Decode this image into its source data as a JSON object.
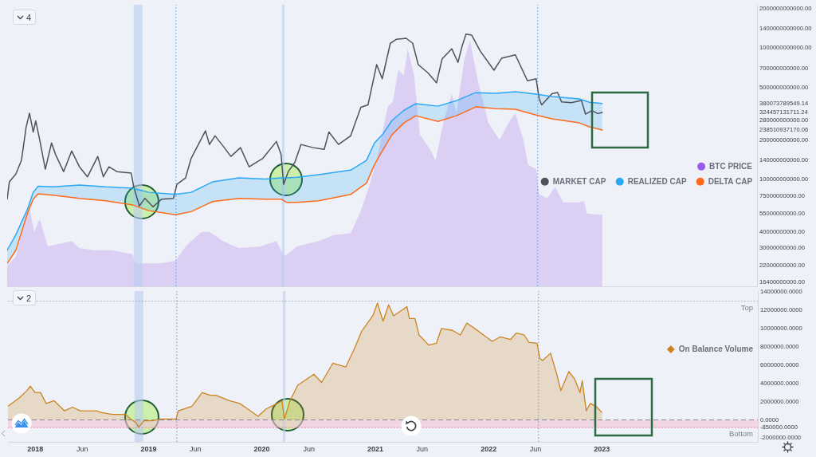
{
  "chart_data": [
    {
      "type": "line",
      "log": true,
      "xlim": [
        "2017-10-06",
        "2024-05-19"
      ],
      "ylim": [
        15400000000,
        2140000000000
      ],
      "yticks": [
        {
          "value": 16400000000,
          "label": "16400000000.00"
        },
        {
          "value": 22000000000,
          "label": "22000000000.00"
        },
        {
          "value": 30000000000,
          "label": "30000000000.00"
        },
        {
          "value": 40000000000,
          "label": "40000000000.00"
        },
        {
          "value": 55000000000,
          "label": "55000000000.00"
        },
        {
          "value": 75000000000,
          "label": "75000000000.00"
        },
        {
          "value": 100000000000,
          "label": "100000000000.00"
        },
        {
          "value": 140000000000,
          "label": "140000000000.00"
        },
        {
          "value": 200000000000,
          "label": "200000000000.00"
        },
        {
          "value": 238510937170.06,
          "label": "238510937170.06"
        },
        {
          "value": 280000000000,
          "label": "280000000000.00"
        },
        {
          "value": 324457131711.24,
          "label": "324457131711.24"
        },
        {
          "value": 380073789549.14,
          "label": "380073789549.14"
        },
        {
          "value": 500000000000,
          "label": "500000000000.00"
        },
        {
          "value": 700000000000,
          "label": "700000000000.00"
        },
        {
          "value": 1000000000000,
          "label": "1000000000000.00"
        },
        {
          "value": 1400000000000,
          "label": "1400000000000.00"
        },
        {
          "value": 2000000000000,
          "label": "2000000000000.00"
        }
      ],
      "tick_labels": "y",
      "legend": "right",
      "line_style": "solid",
      "annotations": [
        "4"
      ],
      "ref_lines": [
        {
          "axis": "x",
          "value": "2019-04-03",
          "color": "#5b9be0",
          "line_style": "dotted"
        },
        {
          "axis": "x",
          "value": "2022-06-12",
          "color": "#5b9be0",
          "line_style": "dotted"
        }
      ],
      "bands": [
        {
          "axis": "x",
          "from": "2018-11-18",
          "to": "2018-12-16",
          "color": "#b7cdf0"
        },
        {
          "axis": "x",
          "from": "2020-03-10",
          "to": "2020-03-18",
          "color": "#b7cdf0"
        }
      ],
      "series": [
        {
          "name": "BTC PRICE",
          "type": "area",
          "color": "#9a5ce8",
          "x": [
            "2017-10-06",
            "2017-11-03",
            "2017-12-06",
            "2017-12-17",
            "2018-01-01",
            "2018-01-19",
            "2018-02-14",
            "2018-04-06",
            "2018-05-02",
            "2018-05-27",
            "2018-07-18",
            "2018-09-07",
            "2018-11-15",
            "2018-11-23",
            "2019-02-08",
            "2019-04-01",
            "2019-05-04",
            "2019-06-24",
            "2019-07-20",
            "2019-09-02",
            "2019-10-23",
            "2019-12-31",
            "2020-02-21",
            "2020-03-17",
            "2020-04-27",
            "2020-07-06",
            "2020-08-26",
            "2020-10-17",
            "2020-11-19",
            "2020-12-15",
            "2021-01-09",
            "2021-02-14",
            "2021-03-02",
            "2021-03-20",
            "2021-04-07",
            "2021-04-19",
            "2021-05-10",
            "2021-05-28",
            "2021-06-30",
            "2021-07-18",
            "2021-08-13",
            "2021-09-08",
            "2021-09-23",
            "2021-10-19",
            "2021-11-06",
            "2021-12-01",
            "2022-01-04",
            "2022-02-09",
            "2022-03-14",
            "2022-04-01",
            "2022-04-27",
            "2022-05-12",
            "2022-06-07",
            "2022-06-17",
            "2022-07-13",
            "2022-08-07",
            "2022-09-02",
            "2022-10-24",
            "2022-11-08",
            "2022-11-18",
            "2023-01-06"
          ],
          "values": [
            22000000000,
            26000000000,
            55000000000,
            60000000000,
            40000000000,
            50000000000,
            31000000000,
            33000000000,
            34000000000,
            30000000000,
            29000000000,
            29000000000,
            27000000000,
            23000000000,
            23000000000,
            24000000000,
            31000000000,
            40000000000,
            40000000000,
            34000000000,
            30000000000,
            31000000000,
            34000000000,
            26000000000,
            31000000000,
            34000000000,
            38000000000,
            39000000000,
            58000000000,
            88000000000,
            140000000000,
            360000000000,
            390000000000,
            680000000000,
            620000000000,
            990000000000,
            620000000000,
            220000000000,
            170000000000,
            140000000000,
            280000000000,
            450000000000,
            320000000000,
            830000000000,
            1140000000000,
            570000000000,
            270000000000,
            200000000000,
            280000000000,
            320000000000,
            200000000000,
            130000000000,
            120000000000,
            77000000000,
            72000000000,
            88000000000,
            67000000000,
            67000000000,
            69000000000,
            55000000000,
            54000000000
          ]
        },
        {
          "name": "MARKET CAP",
          "color": "#4f525c",
          "x": [
            "2017-10-06",
            "2017-10-13",
            "2017-11-03",
            "2017-11-21",
            "2017-12-06",
            "2017-12-17",
            "2017-12-29",
            "2018-01-06",
            "2018-01-19",
            "2018-02-06",
            "2018-02-26",
            "2018-03-11",
            "2018-04-06",
            "2018-05-02",
            "2018-05-27",
            "2018-06-22",
            "2018-07-25",
            "2018-08-12",
            "2018-08-30",
            "2018-09-25",
            "2018-11-10",
            "2018-11-18",
            "2018-12-06",
            "2018-12-24",
            "2019-01-19",
            "2019-02-16",
            "2019-03-26",
            "2019-04-06",
            "2019-05-04",
            "2019-05-22",
            "2019-06-24",
            "2019-07-07",
            "2019-07-20",
            "2019-08-07",
            "2019-09-02",
            "2019-09-27",
            "2019-10-28",
            "2019-11-25",
            "2019-12-18",
            "2020-01-08",
            "2020-02-21",
            "2020-03-07",
            "2020-03-15",
            "2020-03-30",
            "2020-04-20",
            "2020-05-10",
            "2020-06-18",
            "2020-07-24",
            "2020-08-08",
            "2020-09-08",
            "2020-10-17",
            "2020-11-19",
            "2020-12-12",
            "2021-01-09",
            "2021-01-27",
            "2021-02-22",
            "2021-03-14",
            "2021-04-14",
            "2021-05-05",
            "2021-05-23",
            "2021-06-23",
            "2021-07-21",
            "2021-08-08",
            "2021-09-08",
            "2021-09-28",
            "2021-10-11",
            "2021-10-24",
            "2021-11-11",
            "2021-12-09",
            "2022-01-22",
            "2022-02-16",
            "2022-04-01",
            "2022-05-10",
            "2022-06-07",
            "2022-06-17",
            "2022-06-25",
            "2022-07-28",
            "2022-08-15",
            "2022-08-28",
            "2022-09-28",
            "2022-10-31",
            "2022-11-13",
            "2022-12-04",
            "2022-12-22",
            "2023-01-06"
          ],
          "values": [
            71000000000,
            96000000000,
            110000000000,
            140000000000,
            250000000000,
            320000000000,
            230000000000,
            280000000000,
            200000000000,
            120000000000,
            190000000000,
            155000000000,
            115000000000,
            165000000000,
            125000000000,
            105000000000,
            150000000000,
            105000000000,
            125000000000,
            115000000000,
            112000000000,
            88000000000,
            63000000000,
            72000000000,
            62000000000,
            71000000000,
            72000000000,
            92000000000,
            103000000000,
            145000000000,
            205000000000,
            235000000000,
            185000000000,
            215000000000,
            180000000000,
            150000000000,
            175000000000,
            125000000000,
            135000000000,
            145000000000,
            195000000000,
            155000000000,
            92000000000,
            115000000000,
            135000000000,
            185000000000,
            175000000000,
            170000000000,
            230000000000,
            185000000000,
            215000000000,
            355000000000,
            370000000000,
            750000000000,
            585000000000,
            1090000000000,
            1170000000000,
            1190000000000,
            1090000000000,
            750000000000,
            650000000000,
            545000000000,
            830000000000,
            990000000000,
            780000000000,
            1030000000000,
            1280000000000,
            1260000000000,
            950000000000,
            680000000000,
            840000000000,
            890000000000,
            565000000000,
            585000000000,
            410000000000,
            370000000000,
            450000000000,
            460000000000,
            390000000000,
            385000000000,
            400000000000,
            315000000000,
            335000000000,
            318000000000,
            324457131711.24
          ]
        },
        {
          "name": "REALIZED CAP",
          "color": "#29a8f5",
          "x": [
            "2017-10-06",
            "2017-11-03",
            "2017-12-11",
            "2017-12-29",
            "2018-01-14",
            "2018-03-04",
            "2018-05-27",
            "2018-08-20",
            "2018-11-15",
            "2019-01-06",
            "2019-04-01",
            "2019-05-22",
            "2019-07-30",
            "2019-10-23",
            "2020-01-16",
            "2020-03-07",
            "2020-03-25",
            "2020-04-27",
            "2020-07-06",
            "2020-10-17",
            "2020-12-07",
            "2021-01-02",
            "2021-01-27",
            "2021-02-27",
            "2021-04-07",
            "2021-05-15",
            "2021-07-26",
            "2021-09-23",
            "2021-11-24",
            "2022-01-29",
            "2022-04-01",
            "2022-06-07",
            "2022-07-28",
            "2022-10-24",
            "2022-11-26",
            "2023-01-06"
          ],
          "values": [
            29000000000,
            38000000000,
            60000000000,
            80000000000,
            89000000000,
            88000000000,
            91000000000,
            88000000000,
            86000000000,
            80000000000,
            77000000000,
            80000000000,
            96000000000,
            103000000000,
            101000000000,
            103000000000,
            103000000000,
            104000000000,
            109000000000,
            118000000000,
            140000000000,
            190000000000,
            219000000000,
            281000000000,
            337000000000,
            378000000000,
            362000000000,
            399000000000,
            459000000000,
            453000000000,
            466000000000,
            447000000000,
            429000000000,
            411000000000,
            388000000000,
            380073789549.14
          ],
          "upper": [
            29000000000,
            38000000000,
            60000000000,
            80000000000,
            89000000000,
            88000000000,
            91000000000,
            88000000000,
            86000000000,
            80000000000,
            77000000000,
            80000000000,
            96000000000,
            103000000000,
            101000000000,
            103000000000,
            103000000000,
            104000000000,
            109000000000,
            118000000000,
            140000000000,
            190000000000,
            219000000000,
            281000000000,
            337000000000,
            378000000000,
            362000000000,
            399000000000,
            459000000000,
            453000000000,
            466000000000,
            447000000000,
            429000000000,
            411000000000,
            388000000000,
            380073789549.14
          ],
          "lower": [
            23000000000,
            29000000000,
            56000000000,
            71000000000,
            78000000000,
            76000000000,
            72000000000,
            69000000000,
            64000000000,
            58000000000,
            54000000000,
            57000000000,
            68000000000,
            72000000000,
            71000000000,
            71000000000,
            67000000000,
            67000000000,
            69000000000,
            77000000000,
            94000000000,
            130000000000,
            165000000000,
            219000000000,
            270000000000,
            306000000000,
            277000000000,
            306000000000,
            357000000000,
            347000000000,
            343000000000,
            310000000000,
            290000000000,
            270000000000,
            252000000000,
            238510937170.06
          ]
        },
        {
          "name": "DELTA CAP",
          "color": "#ff6a1a",
          "x": [
            "2017-10-06",
            "2017-11-03",
            "2017-12-11",
            "2017-12-29",
            "2018-01-14",
            "2018-03-04",
            "2018-05-27",
            "2018-08-20",
            "2018-11-15",
            "2019-01-06",
            "2019-04-01",
            "2019-05-22",
            "2019-07-30",
            "2019-10-23",
            "2020-01-16",
            "2020-03-07",
            "2020-03-25",
            "2020-04-27",
            "2020-07-06",
            "2020-10-17",
            "2020-12-07",
            "2021-01-02",
            "2021-01-27",
            "2021-02-27",
            "2021-04-07",
            "2021-05-15",
            "2021-07-26",
            "2021-09-23",
            "2021-11-24",
            "2022-01-29",
            "2022-04-01",
            "2022-06-07",
            "2022-07-28",
            "2022-10-24",
            "2022-11-26",
            "2023-01-06"
          ],
          "values": [
            23000000000,
            29000000000,
            56000000000,
            71000000000,
            78000000000,
            76000000000,
            72000000000,
            69000000000,
            64000000000,
            58000000000,
            54000000000,
            57000000000,
            68000000000,
            72000000000,
            71000000000,
            71000000000,
            67000000000,
            67000000000,
            69000000000,
            77000000000,
            94000000000,
            130000000000,
            165000000000,
            219000000000,
            270000000000,
            306000000000,
            277000000000,
            306000000000,
            357000000000,
            347000000000,
            343000000000,
            310000000000,
            290000000000,
            270000000000,
            252000000000,
            238510937170.06
          ]
        }
      ]
    },
    {
      "type": "area",
      "x": [
        "2017-10-06",
        "2017-11-11",
        "2017-12-06",
        "2017-12-17",
        "2018-01-01",
        "2018-01-19",
        "2018-02-06",
        "2018-03-04",
        "2018-04-06",
        "2018-05-02",
        "2018-05-27",
        "2018-07-18",
        "2018-08-05",
        "2018-09-07",
        "2018-10-21",
        "2018-11-05",
        "2018-11-23",
        "2018-12-01",
        "2018-12-19",
        "2019-01-13",
        "2019-02-08",
        "2019-04-01",
        "2019-04-08",
        "2019-05-22",
        "2019-06-24",
        "2019-07-20",
        "2019-08-07",
        "2019-09-20",
        "2019-10-23",
        "2019-11-18",
        "2019-12-21",
        "2020-01-16",
        "2020-02-21",
        "2020-03-07",
        "2020-03-15",
        "2020-04-02",
        "2020-04-27",
        "2020-06-18",
        "2020-07-13",
        "2020-08-18",
        "2020-09-29",
        "2020-10-24",
        "2020-11-19",
        "2020-12-25",
        "2021-01-09",
        "2021-01-27",
        "2021-02-14",
        "2021-03-02",
        "2021-04-14",
        "2021-04-22",
        "2021-05-10",
        "2021-05-23",
        "2021-06-23",
        "2021-07-18",
        "2021-08-03",
        "2021-09-08",
        "2021-10-03",
        "2021-10-24",
        "2021-12-01",
        "2022-01-14",
        "2022-02-09",
        "2022-03-14",
        "2022-04-01",
        "2022-04-27",
        "2022-05-12",
        "2022-06-07",
        "2022-06-17",
        "2022-06-25",
        "2022-07-21",
        "2022-08-10",
        "2022-08-23",
        "2022-09-18",
        "2022-10-06",
        "2022-10-24",
        "2022-10-31",
        "2022-11-13",
        "2022-11-26",
        "2022-12-14",
        "2023-01-03"
      ],
      "series": [
        {
          "name": "On Balance Volume",
          "color": "#cc841e",
          "line_style": "solid",
          "values": [
            1500000,
            2400000,
            3200000,
            3700000,
            3000000,
            3000000,
            1800000,
            2100000,
            1000000,
            1400000,
            1000000,
            1000000,
            800000,
            600000,
            600000,
            100000,
            -300000,
            -800000,
            -100000,
            -100000,
            100000,
            100000,
            1000000,
            1500000,
            3000000,
            2700000,
            2700000,
            2100000,
            1800000,
            1200000,
            400000,
            1200000,
            1800000,
            2100000,
            100000,
            2100000,
            3800000,
            5000000,
            4100000,
            6200000,
            5800000,
            7600000,
            9700000,
            11400000,
            12800000,
            10800000,
            12600000,
            11400000,
            12400000,
            11100000,
            11100000,
            9300000,
            8200000,
            8400000,
            10000000,
            9800000,
            9300000,
            10600000,
            9700000,
            8600000,
            9100000,
            8800000,
            9500000,
            9300000,
            8500000,
            8400000,
            6700000,
            6500000,
            7300000,
            5000000,
            3200000,
            5300000,
            4500000,
            3000000,
            4300000,
            1000000,
            1800000,
            1500000,
            800000
          ]
        }
      ],
      "xlim": [
        "2017-10-06",
        "2024-05-19"
      ],
      "xticks": [
        {
          "value": "2018-01-01",
          "label": "2018"
        },
        {
          "value": "2018-06-01",
          "label": "Jun"
        },
        {
          "value": "2019-01-01",
          "label": "2019"
        },
        {
          "value": "2019-06-01",
          "label": "Jun"
        },
        {
          "value": "2020-01-01",
          "label": "2020"
        },
        {
          "value": "2020-06-01",
          "label": "Jun"
        },
        {
          "value": "2021-01-01",
          "label": "2021"
        },
        {
          "value": "2021-06-01",
          "label": "Jun"
        },
        {
          "value": "2022-01-01",
          "label": "2022"
        },
        {
          "value": "2022-06-01",
          "label": "Jun"
        },
        {
          "value": "2023-01-01",
          "label": "2023"
        }
      ],
      "ylim": [
        -2400000,
        14100000
      ],
      "yticks": [
        {
          "value": -2000000,
          "label": "-2000000.0000"
        },
        {
          "value": -850000,
          "label": "-850000.0000"
        },
        {
          "value": 0,
          "label": "0.0000"
        },
        {
          "value": 2000000,
          "label": "2000000.0000"
        },
        {
          "value": 4000000,
          "label": "4000000.0000"
        },
        {
          "value": 6000000,
          "label": "6000000.0000"
        },
        {
          "value": 8000000,
          "label": "8000000.0000"
        },
        {
          "value": 10000000,
          "label": "10000000.0000"
        },
        {
          "value": 12000000,
          "label": "12000000.0000"
        },
        {
          "value": 14000000,
          "label": "14000000.0000"
        }
      ],
      "legend": "right",
      "annotations": [
        "2"
      ],
      "ref_lines": [
        {
          "axis": "x",
          "value": "2019-04-03",
          "color": "#5b9be0",
          "line_style": "dotted"
        },
        {
          "axis": "x",
          "value": "2022-06-12",
          "color": "#5b9be0",
          "line_style": "dotted"
        },
        {
          "axis": "y",
          "value": 13000000,
          "label": "Top",
          "color": "#9aa0ab",
          "line_style": "dotted"
        },
        {
          "axis": "y",
          "value": 0,
          "color": "#858994",
          "line_style": "dashed"
        },
        {
          "axis": "y",
          "value": -850000,
          "label": "Bottom",
          "color": "#e0708c",
          "line_style": "dotted"
        }
      ],
      "bands": [
        {
          "axis": "y",
          "from": -850000,
          "to": 0,
          "color": "#f4c3d5"
        },
        {
          "axis": "x",
          "from": "2018-11-18",
          "to": "2018-12-16",
          "color": "#b7cdf0"
        },
        {
          "axis": "x",
          "from": "2020-03-10",
          "to": "2020-03-18",
          "color": "#b7cdf0"
        }
      ]
    }
  ]
}
